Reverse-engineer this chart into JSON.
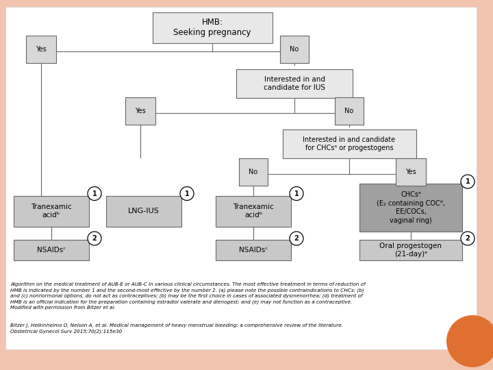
{
  "background_color": "#f2c4b0",
  "box_fill_white": "#f0f0f0",
  "box_fill_mid": "#c8c8c8",
  "box_fill_dark": "#a0a0a0",
  "box_edge": "#666666",
  "title": "HMB:\nSeeking pregnancy",
  "caption": "Algorithm on the medical treatment of AUB-E or AUB-C in various clinical circumstances. The most effective treatment in terms of reduction of\nHMB is indicated by the number 1 and the second-most effective by the number 2. (a) please note the possible contraindications to CHCs; (b)\nand (c) nonhormonal options, do not act as contraceptives; (b) may be the first choice in cases of associated dysmenorrhea; (d) treatment of\nHMB is an official indication for the preparation containing estradiol valerate and dienogest; and (e) may not function as a contraceptive.\nModified with permission from Bitzer et al.",
  "ref": "Bitzer J, Heikinheimo O, Nelson A, et al. Medical management of heavy menstrual bleeding: a comprehensive review of the literature.\nObstetrical Gynecol Surv 2015;70(2):115e30"
}
